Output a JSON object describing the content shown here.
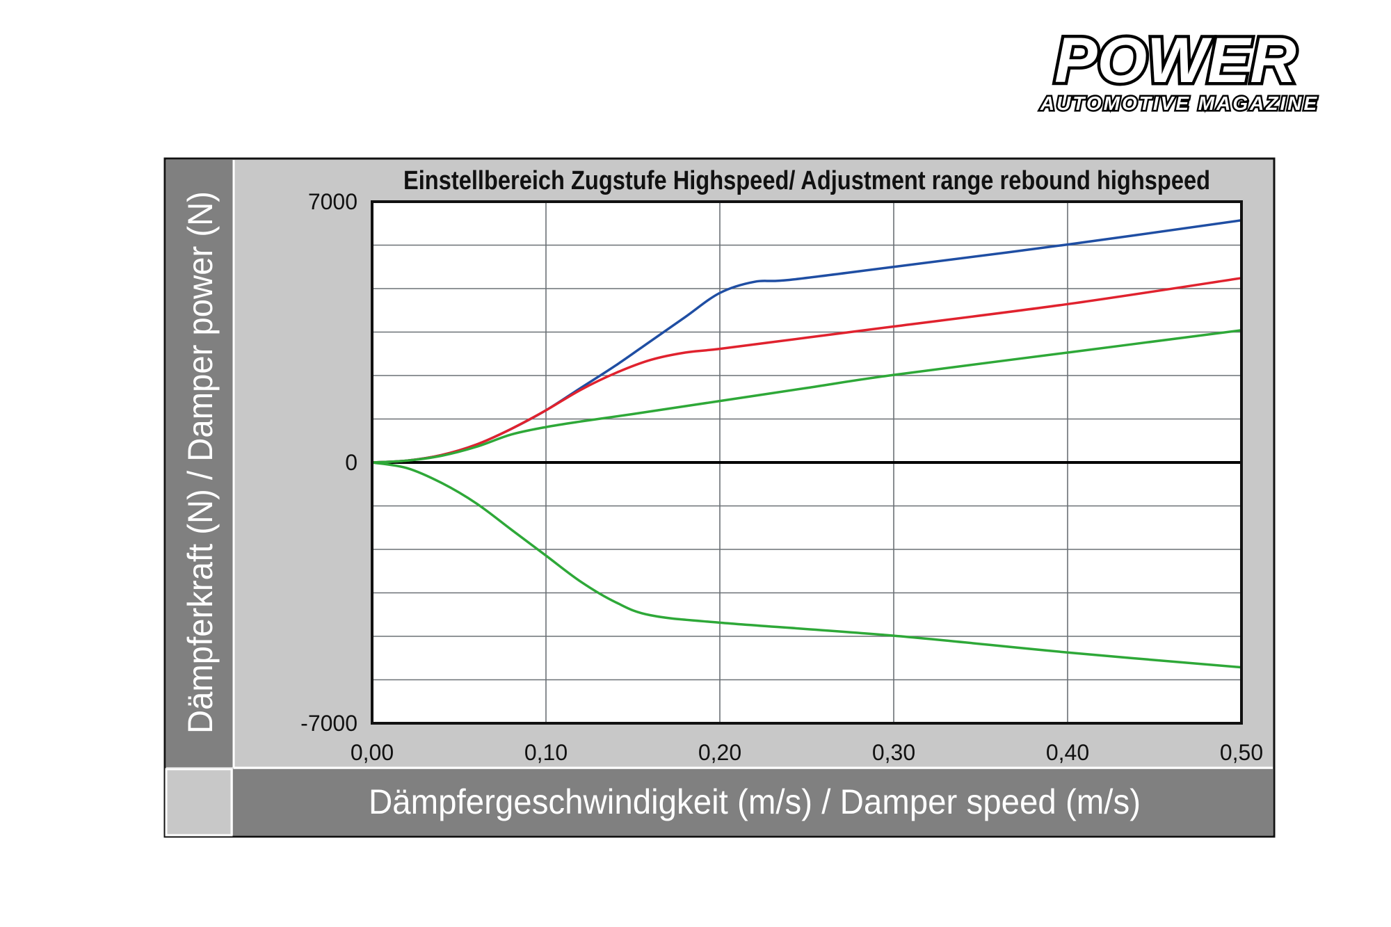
{
  "brand": {
    "name": "POWER",
    "tagline": "AUTOMOTIVE MAGAZINE"
  },
  "chart_data": {
    "type": "line",
    "title": "Einstellbereich Zugstufe Highspeed/ Adjustment range rebound highspeed",
    "xlabel": "Dämpfergeschwindigkeit (m/s) / Damper speed (m/s)",
    "ylabel": "Dämpferkraft (N) / Damper power (N)",
    "xlim": [
      0,
      0.5
    ],
    "ylim": [
      -7000,
      7000
    ],
    "x_ticks": [
      {
        "value": 0.0,
        "label": "0,00"
      },
      {
        "value": 0.1,
        "label": "0,10"
      },
      {
        "value": 0.2,
        "label": "0,20"
      },
      {
        "value": 0.3,
        "label": "0,30"
      },
      {
        "value": 0.4,
        "label": "0,40"
      },
      {
        "value": 0.5,
        "label": "0,50"
      }
    ],
    "y_ticks": [
      {
        "value": 7000,
        "label": "7000"
      },
      {
        "value": 0,
        "label": "0"
      },
      {
        "value": -7000,
        "label": "-7000"
      }
    ],
    "y_grid_step": 1166.67,
    "grid": true,
    "series": [
      {
        "color": "#1f4ea3",
        "x": [
          0,
          0.02,
          0.04,
          0.06,
          0.08,
          0.1,
          0.12,
          0.14,
          0.16,
          0.18,
          0.2,
          0.22,
          0.24,
          0.3,
          0.4,
          0.5
        ],
        "y": [
          0,
          50,
          200,
          480,
          900,
          1400,
          2000,
          2600,
          3250,
          3900,
          4550,
          4850,
          4900,
          5250,
          5850,
          6500
        ]
      },
      {
        "color": "#e0222e",
        "x": [
          0,
          0.02,
          0.04,
          0.06,
          0.08,
          0.1,
          0.12,
          0.14,
          0.16,
          0.18,
          0.2,
          0.25,
          0.3,
          0.4,
          0.5
        ],
        "y": [
          0,
          50,
          200,
          480,
          900,
          1400,
          1950,
          2400,
          2750,
          2950,
          3050,
          3350,
          3650,
          4250,
          4950
        ]
      },
      {
        "color": "#2ea838",
        "x": [
          0,
          0.02,
          0.04,
          0.06,
          0.08,
          0.1,
          0.12,
          0.15,
          0.2,
          0.25,
          0.3,
          0.4,
          0.5
        ],
        "y": [
          0,
          50,
          180,
          420,
          750,
          950,
          1100,
          1300,
          1650,
          2000,
          2350,
          2950,
          3550
        ]
      },
      {
        "color": "#2ea838",
        "x": [
          0,
          0.02,
          0.04,
          0.06,
          0.08,
          0.1,
          0.12,
          0.14,
          0.16,
          0.2,
          0.3,
          0.4,
          0.5
        ],
        "y": [
          0,
          -150,
          -550,
          -1100,
          -1800,
          -2500,
          -3200,
          -3750,
          -4100,
          -4300,
          -4650,
          -5100,
          -5500
        ]
      }
    ]
  }
}
